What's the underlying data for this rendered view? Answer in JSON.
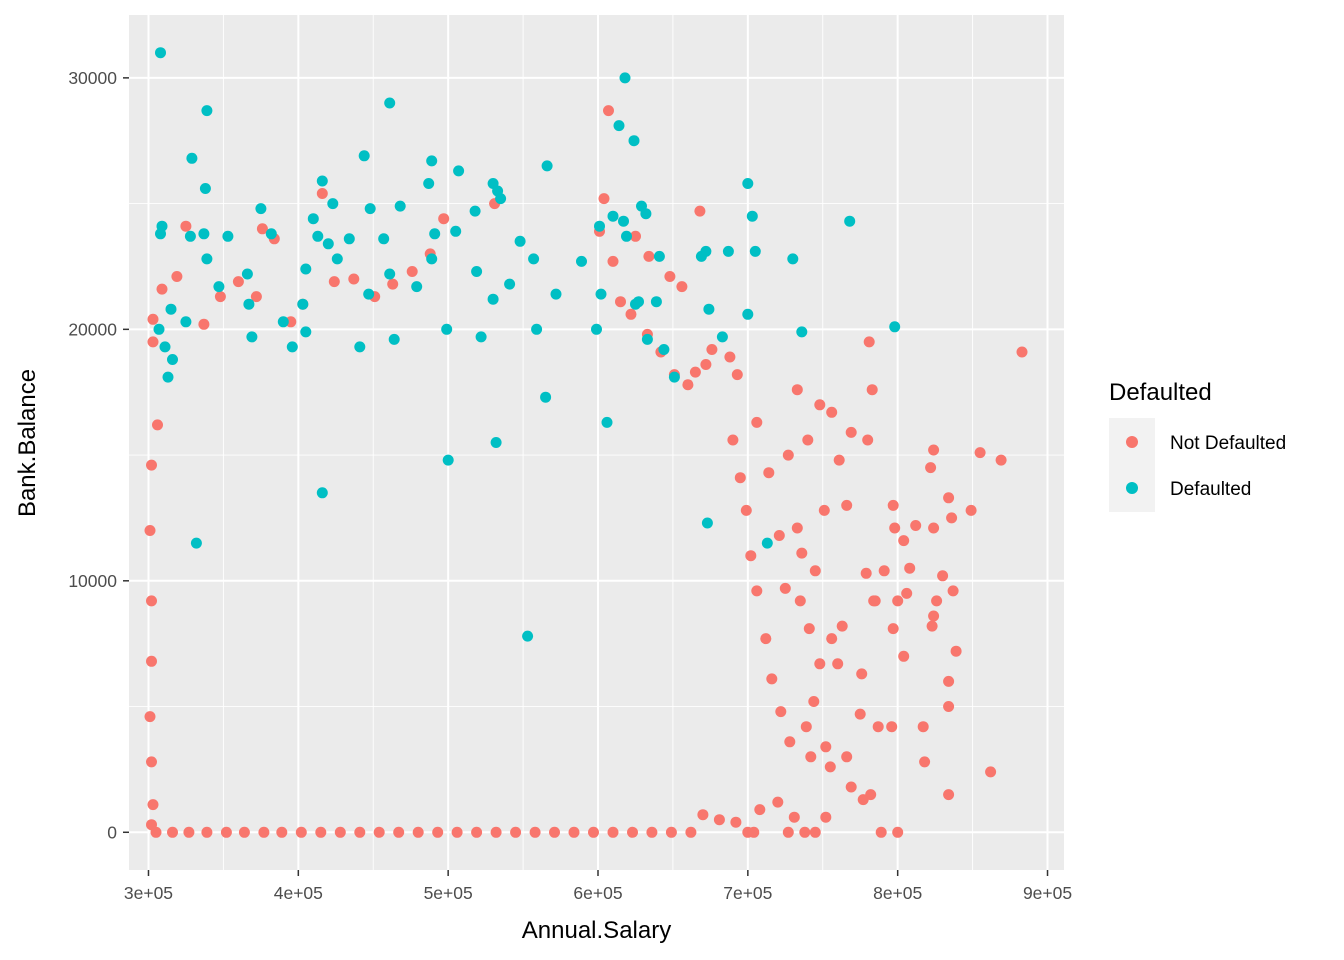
{
  "chart_data": {
    "type": "scatter",
    "xlabel": "Annual.Salary",
    "ylabel": "Bank.Balance",
    "xlim": [
      287000,
      911000
    ],
    "ylim": [
      -1500,
      32500
    ],
    "x_ticks": [
      300000,
      400000,
      500000,
      600000,
      700000,
      800000,
      900000
    ],
    "x_tick_labels": [
      "3e+05",
      "4e+05",
      "5e+05",
      "6e+05",
      "7e+05",
      "8e+05",
      "9e+05"
    ],
    "y_ticks": [
      0,
      10000,
      20000,
      30000
    ],
    "y_tick_labels": [
      "0",
      "10000",
      "20000",
      "30000"
    ],
    "grid": true,
    "legend": {
      "title": "Defaulted",
      "position": "right",
      "entries": [
        {
          "label": "Not Defaulted",
          "color": "#F8766D"
        },
        {
          "label": "Defaulted",
          "color": "#00BFC4"
        }
      ]
    },
    "series": [
      {
        "name": "Not Defaulted",
        "color": "#F8766D",
        "points": [
          [
            883000,
            19100
          ],
          [
            869000,
            14800
          ],
          [
            855000,
            15100
          ],
          [
            849000,
            12800
          ],
          [
            836000,
            12500
          ],
          [
            834000,
            13300
          ],
          [
            824000,
            15200
          ],
          [
            822000,
            14500
          ],
          [
            824000,
            12100
          ],
          [
            812000,
            12200
          ],
          [
            804000,
            11600
          ],
          [
            798000,
            12100
          ],
          [
            797000,
            13000
          ],
          [
            784000,
            9200
          ],
          [
            779000,
            10300
          ],
          [
            769000,
            15900
          ],
          [
            780000,
            15600
          ],
          [
            783000,
            17600
          ],
          [
            781000,
            19500
          ],
          [
            766000,
            13000
          ],
          [
            761000,
            14800
          ],
          [
            756000,
            16700
          ],
          [
            748000,
            17000
          ],
          [
            733000,
            17600
          ],
          [
            740000,
            15600
          ],
          [
            837000,
            9600
          ],
          [
            830000,
            10200
          ],
          [
            826000,
            9200
          ],
          [
            806000,
            9500
          ],
          [
            808000,
            10500
          ],
          [
            800000,
            9200
          ],
          [
            791000,
            10400
          ],
          [
            824000,
            8600
          ],
          [
            834000,
            6000
          ],
          [
            839000,
            7200
          ],
          [
            823000,
            8200
          ],
          [
            804000,
            7000
          ],
          [
            797000,
            8100
          ],
          [
            785000,
            9200
          ],
          [
            776000,
            6300
          ],
          [
            834000,
            5000
          ],
          [
            817000,
            4200
          ],
          [
            796000,
            4200
          ],
          [
            787000,
            4200
          ],
          [
            862000,
            2400
          ],
          [
            834000,
            1500
          ],
          [
            818000,
            2800
          ],
          [
            782000,
            1500
          ],
          [
            777000,
            1300
          ],
          [
            775000,
            4700
          ],
          [
            763000,
            8200
          ],
          [
            756000,
            7700
          ],
          [
            752000,
            3400
          ],
          [
            755000,
            2600
          ],
          [
            760000,
            6700
          ],
          [
            742000,
            3000
          ],
          [
            800000,
            0
          ],
          [
            789000,
            0
          ],
          [
            745000,
            0
          ],
          [
            738000,
            0
          ],
          [
            752000,
            600
          ],
          [
            731000,
            600
          ],
          [
            727000,
            0
          ],
          [
            720000,
            1200
          ],
          [
            704000,
            0
          ],
          [
            708000,
            900
          ],
          [
            692000,
            400
          ],
          [
            681000,
            500
          ],
          [
            700000,
            0
          ],
          [
            670000,
            700
          ],
          [
            769000,
            1800
          ],
          [
            766000,
            3000
          ],
          [
            728000,
            3600
          ],
          [
            722000,
            4800
          ],
          [
            716000,
            6100
          ],
          [
            712000,
            7700
          ],
          [
            706000,
            9600
          ],
          [
            702000,
            11000
          ],
          [
            699000,
            12800
          ],
          [
            695000,
            14100
          ],
          [
            690000,
            15600
          ],
          [
            706000,
            16300
          ],
          [
            714000,
            14300
          ],
          [
            727000,
            15000
          ],
          [
            736000,
            11100
          ],
          [
            745000,
            10400
          ],
          [
            751000,
            12800
          ],
          [
            733000,
            12100
          ],
          [
            721000,
            11800
          ],
          [
            725000,
            9700
          ],
          [
            735000,
            9200
          ],
          [
            741000,
            8100
          ],
          [
            748000,
            6700
          ],
          [
            744000,
            5200
          ],
          [
            739000,
            4200
          ],
          [
            693000,
            18200
          ],
          [
            688000,
            18900
          ],
          [
            676000,
            19200
          ],
          [
            672000,
            18600
          ],
          [
            665000,
            18300
          ],
          [
            660000,
            17800
          ],
          [
            651000,
            18200
          ],
          [
            642000,
            19100
          ],
          [
            633000,
            19800
          ],
          [
            622000,
            20600
          ],
          [
            615000,
            21100
          ],
          [
            601000,
            23900
          ],
          [
            610000,
            22700
          ],
          [
            625000,
            23700
          ],
          [
            634000,
            22900
          ],
          [
            648000,
            22100
          ],
          [
            656000,
            21700
          ],
          [
            668000,
            24700
          ],
          [
            604000,
            25200
          ],
          [
            607000,
            28700
          ],
          [
            531000,
            25000
          ],
          [
            497000,
            24400
          ],
          [
            488000,
            23000
          ],
          [
            476000,
            22300
          ],
          [
            463000,
            21800
          ],
          [
            451000,
            21300
          ],
          [
            437000,
            22000
          ],
          [
            424000,
            21900
          ],
          [
            416000,
            25400
          ],
          [
            403000,
            21000
          ],
          [
            395000,
            20300
          ],
          [
            384000,
            23600
          ],
          [
            376000,
            24000
          ],
          [
            372000,
            21300
          ],
          [
            360000,
            21900
          ],
          [
            348000,
            21300
          ],
          [
            337000,
            20200
          ],
          [
            325000,
            24100
          ],
          [
            319000,
            22100
          ],
          [
            309000,
            21600
          ],
          [
            303000,
            20400
          ],
          [
            303000,
            19500
          ],
          [
            306000,
            16200
          ],
          [
            302000,
            14600
          ],
          [
            301000,
            12000
          ],
          [
            302000,
            9200
          ],
          [
            302000,
            6800
          ],
          [
            301000,
            4600
          ],
          [
            302000,
            2800
          ],
          [
            303000,
            1100
          ],
          [
            302000,
            300
          ],
          [
            305000,
            0
          ],
          [
            316000,
            0
          ],
          [
            327000,
            0
          ],
          [
            339000,
            0
          ],
          [
            352000,
            0
          ],
          [
            364000,
            0
          ],
          [
            377000,
            0
          ],
          [
            389000,
            0
          ],
          [
            402000,
            0
          ],
          [
            415000,
            0
          ],
          [
            428000,
            0
          ],
          [
            441000,
            0
          ],
          [
            454000,
            0
          ],
          [
            467000,
            0
          ],
          [
            480000,
            0
          ],
          [
            493000,
            0
          ],
          [
            506000,
            0
          ],
          [
            519000,
            0
          ],
          [
            532000,
            0
          ],
          [
            545000,
            0
          ],
          [
            558000,
            0
          ],
          [
            571000,
            0
          ],
          [
            584000,
            0
          ],
          [
            597000,
            0
          ],
          [
            610000,
            0
          ],
          [
            623000,
            0
          ],
          [
            636000,
            0
          ],
          [
            649000,
            0
          ],
          [
            662000,
            0
          ]
        ]
      },
      {
        "name": "Defaulted",
        "color": "#00BFC4",
        "points": [
          [
            308000,
            31000
          ],
          [
            618000,
            30000
          ],
          [
            339000,
            28700
          ],
          [
            461000,
            29000
          ],
          [
            614000,
            28100
          ],
          [
            624000,
            27500
          ],
          [
            329000,
            26800
          ],
          [
            444000,
            26900
          ],
          [
            489000,
            26700
          ],
          [
            566000,
            26500
          ],
          [
            338000,
            25600
          ],
          [
            416000,
            25900
          ],
          [
            507000,
            26300
          ],
          [
            530000,
            25800
          ],
          [
            487000,
            25800
          ],
          [
            533000,
            25500
          ],
          [
            535000,
            25200
          ],
          [
            700000,
            25800
          ],
          [
            629000,
            24900
          ],
          [
            632000,
            24600
          ],
          [
            610000,
            24500
          ],
          [
            617000,
            24300
          ],
          [
            703000,
            24500
          ],
          [
            768000,
            24300
          ],
          [
            375000,
            24800
          ],
          [
            410000,
            24400
          ],
          [
            423000,
            25000
          ],
          [
            448000,
            24800
          ],
          [
            468000,
            24900
          ],
          [
            518000,
            24700
          ],
          [
            309000,
            24100
          ],
          [
            308000,
            23800
          ],
          [
            328000,
            23700
          ],
          [
            337000,
            23800
          ],
          [
            353000,
            23700
          ],
          [
            382000,
            23800
          ],
          [
            413000,
            23700
          ],
          [
            420000,
            23400
          ],
          [
            434000,
            23600
          ],
          [
            457000,
            23600
          ],
          [
            491000,
            23800
          ],
          [
            505000,
            23900
          ],
          [
            548000,
            23500
          ],
          [
            619000,
            23700
          ],
          [
            601000,
            24100
          ],
          [
            339000,
            22800
          ],
          [
            366000,
            22200
          ],
          [
            405000,
            22400
          ],
          [
            426000,
            22800
          ],
          [
            461000,
            22200
          ],
          [
            489000,
            22800
          ],
          [
            519000,
            22300
          ],
          [
            557000,
            22800
          ],
          [
            589000,
            22700
          ],
          [
            641000,
            22900
          ],
          [
            669000,
            22900
          ],
          [
            672000,
            23100
          ],
          [
            687000,
            23100
          ],
          [
            705000,
            23100
          ],
          [
            730000,
            22800
          ],
          [
            307000,
            20000
          ],
          [
            311000,
            19300
          ],
          [
            316000,
            18800
          ],
          [
            313000,
            18100
          ],
          [
            347000,
            21700
          ],
          [
            367000,
            21000
          ],
          [
            390000,
            20300
          ],
          [
            403000,
            21000
          ],
          [
            447000,
            21400
          ],
          [
            479000,
            21700
          ],
          [
            530000,
            21200
          ],
          [
            541000,
            21800
          ],
          [
            572000,
            21400
          ],
          [
            602000,
            21400
          ],
          [
            625000,
            21000
          ],
          [
            627000,
            21100
          ],
          [
            639000,
            21100
          ],
          [
            674000,
            20800
          ],
          [
            700000,
            20600
          ],
          [
            798000,
            20100
          ],
          [
            315000,
            20800
          ],
          [
            325000,
            20300
          ],
          [
            369000,
            19700
          ],
          [
            396000,
            19300
          ],
          [
            405000,
            19900
          ],
          [
            441000,
            19300
          ],
          [
            464000,
            19600
          ],
          [
            499000,
            20000
          ],
          [
            522000,
            19700
          ],
          [
            559000,
            20000
          ],
          [
            599000,
            20000
          ],
          [
            633000,
            19600
          ],
          [
            644000,
            19200
          ],
          [
            683000,
            19700
          ],
          [
            736000,
            19900
          ],
          [
            332000,
            11500
          ],
          [
            713000,
            11500
          ],
          [
            416000,
            13500
          ],
          [
            673000,
            12300
          ],
          [
            553000,
            7800
          ],
          [
            500000,
            14800
          ],
          [
            532000,
            15500
          ],
          [
            565000,
            17300
          ],
          [
            606000,
            16300
          ],
          [
            651000,
            18100
          ]
        ]
      }
    ]
  }
}
